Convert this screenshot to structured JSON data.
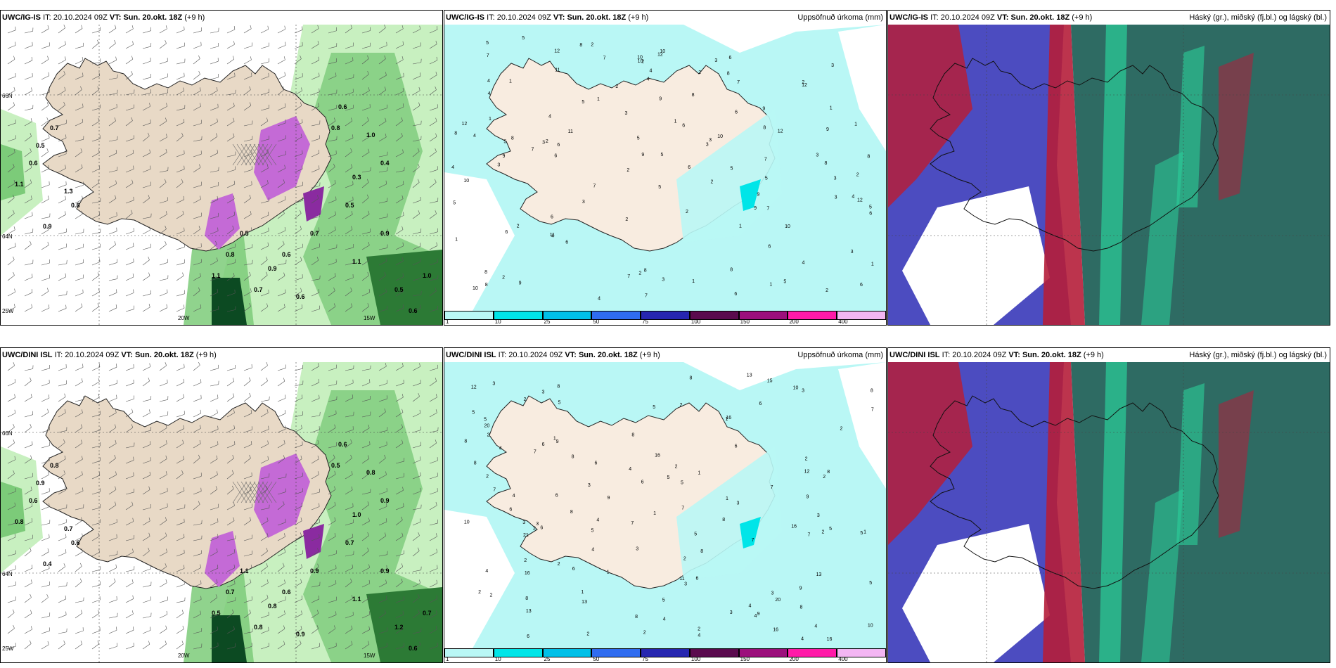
{
  "colors": {
    "land": "#f8ece0",
    "land_ne": "#e9ddd0",
    "precip_light": "#b9f7f5",
    "precip_mid": "#00e5e8",
    "green_light": "#c8f0c0",
    "green_mid": "#7ccb79",
    "green_dark": "#2c7a35",
    "green_deep": "#0c4a22",
    "purple": "#c46ad6",
    "purple_dark": "#8a2ba0",
    "cloud_high": "#b51e3a",
    "cloud_mid": "#4c4cc0",
    "cloud_low": "#2e6b63",
    "cloud_green": "#2bcf9a"
  },
  "panels": [
    {
      "model": "UWC/IG-IS",
      "it_label": "IT:",
      "it_value": "20.10.2024 09Z",
      "vt_label": "VT:",
      "vt_value": "Sun. 20.okt. 18Z",
      "lead": "(+9 h)",
      "title": ""
    },
    {
      "model": "UWC/IG-IS",
      "it_label": "IT:",
      "it_value": "20.10.2024 09Z",
      "vt_label": "VT:",
      "vt_value": "Sun. 20.okt. 18Z",
      "lead": "(+9 h)",
      "title": "Uppsöfnuð úrkoma (mm)"
    },
    {
      "model": "UWC/IG-IS",
      "it_label": "IT:",
      "it_value": "20.10.2024 09Z",
      "vt_label": "VT:",
      "vt_value": "Sun. 20.okt. 18Z",
      "lead": "(+9 h)",
      "title": "Háský (gr.), miðský (fj.bl.) og lágský (bl.)"
    },
    {
      "model": "UWC/DINI ISL",
      "it_label": "IT:",
      "it_value": "20.10.2024 09Z",
      "vt_label": "VT:",
      "vt_value": "Sun. 20.okt. 18Z",
      "lead": "(+9 h)",
      "title": ""
    },
    {
      "model": "UWC/DINI ISL",
      "it_label": "IT:",
      "it_value": "20.10.2024 09Z",
      "vt_label": "VT:",
      "vt_value": "Sun. 20.okt. 18Z",
      "lead": "(+9 h)",
      "title": "Uppsöfnuð úrkoma (mm)"
    },
    {
      "model": "UWC/DINI ISL",
      "it_label": "IT:",
      "it_value": "20.10.2024 09Z",
      "vt_label": "VT:",
      "vt_value": "Sun. 20.okt. 18Z",
      "lead": "(+9 h)",
      "title": "Háský (gr.), miðský (fj.bl.) og lágský (bl.)"
    }
  ],
  "colorbar": {
    "levels": [
      "1",
      "10",
      "25",
      "50",
      "75",
      "100",
      "150",
      "200",
      "400"
    ],
    "colors": [
      "#b9f7f5",
      "#00e5e8",
      "#00c0e8",
      "#2f6cf0",
      "#2626b0",
      "#5a0a4e",
      "#9c0f7c",
      "#ff1aa8",
      "#f3b6f3"
    ]
  },
  "axis_labels": {
    "lon_20w": "20W",
    "lon_15w": "15W",
    "lat_66n": "66N",
    "lat_64n": "64N",
    "lon_25w": "25W"
  },
  "precip_values_top": [
    "1",
    "2",
    "3",
    "5",
    "4",
    "6",
    "7",
    "8",
    "9",
    "10",
    "11",
    "12",
    "2",
    "3",
    "1",
    "4",
    "6",
    "5",
    "7",
    "8",
    "9",
    "2",
    "3",
    "2",
    "1",
    "3",
    "4",
    "5",
    "6",
    "7",
    "8",
    "9",
    "10"
  ],
  "precip_values_bottom": [
    "1",
    "2",
    "3",
    "4",
    "5",
    "6",
    "7",
    "8",
    "9",
    "10",
    "11",
    "12",
    "13",
    "15",
    "16",
    "20",
    "21",
    "2",
    "3",
    "1",
    "4",
    "5",
    "6",
    "7",
    "8",
    "9",
    "2",
    "3",
    "4",
    "5",
    "6",
    "7",
    "8"
  ],
  "prob_values_top": [
    "0.7",
    "0.5",
    "0.6",
    "1.1",
    "0.8",
    "1.3",
    "0.9",
    "0.6",
    "0.8",
    "1.0",
    "0.4",
    "0.3",
    "0.5",
    "0.7",
    "0.6",
    "0.9",
    "0.5",
    "0.8",
    "1.1",
    "0.7",
    "0.6",
    "0.5",
    "0.6",
    "1.0",
    "0.9",
    "1.1"
  ],
  "prob_values_bottom": [
    "0.8",
    "0.9",
    "0.6",
    "0.8",
    "0.6",
    "0.7",
    "0.4",
    "0.6",
    "0.5",
    "0.8",
    "0.9",
    "1.0",
    "0.7",
    "0.9",
    "0.6",
    "0.8",
    "1.1",
    "0.7",
    "0.5",
    "0.8",
    "0.9",
    "1.2",
    "0.6",
    "0.7",
    "0.9",
    "1.1"
  ]
}
